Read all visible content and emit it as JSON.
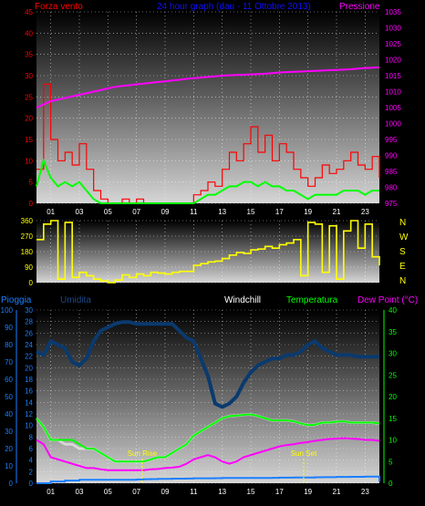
{
  "header": {
    "left_label": "Forza vento",
    "center_label": "24 hour graph (dau - 11 Ottobre 2013)",
    "right_label": "Pressione"
  },
  "bottom_header": {
    "pioggia": "Pioggia",
    "umidita": "Umidita",
    "windchill": "Windchill",
    "temperatura": "Temperatura",
    "dewpoint": "Dew Point (°C)"
  },
  "colors": {
    "wind": "#ff0000",
    "gust_avg": "#00ff00",
    "pressure": "#ff00ff",
    "direction": "#ffff00",
    "humidity": "#0a3a6e",
    "rain": "#1a7fff",
    "temperature": "#00ff00",
    "dewpoint": "#ff00ff",
    "windchill": "#ffffff"
  },
  "x_ticks": [
    "01",
    "03",
    "05",
    "07",
    "09",
    "11",
    "13",
    "15",
    "17",
    "19",
    "21",
    "23"
  ],
  "chart_data": [
    {
      "type": "line",
      "name": "wind-pressure",
      "left_axis": {
        "ticks": [
          0,
          5,
          10,
          15,
          20,
          25,
          30,
          35,
          40,
          45
        ],
        "range": [
          0,
          45
        ]
      },
      "right_axis": {
        "ticks": [
          975,
          980,
          985,
          990,
          995,
          1000,
          1005,
          1010,
          1015,
          1020,
          1025,
          1030,
          1035
        ],
        "range": [
          975,
          1035
        ]
      },
      "x": [
        0,
        0.5,
        1,
        1.5,
        2,
        2.5,
        3,
        3.5,
        4,
        4.5,
        5,
        5.5,
        6,
        6.5,
        7,
        7.5,
        8,
        8.5,
        9,
        9.5,
        10,
        10.5,
        11,
        11.5,
        12,
        12.5,
        13,
        13.5,
        14,
        14.5,
        15,
        15.5,
        16,
        16.5,
        17,
        17.5,
        18,
        18.5,
        19,
        19.5,
        20,
        20.5,
        21,
        21.5,
        22,
        22.5,
        23,
        23.5,
        24
      ],
      "series": [
        {
          "values": [
            8,
            28,
            15,
            10,
            12,
            9,
            14,
            8,
            3,
            1,
            0,
            0,
            1,
            0,
            1,
            0,
            0,
            0,
            0,
            0,
            0,
            0,
            2,
            3,
            5,
            4,
            8,
            12,
            10,
            14,
            18,
            12,
            16,
            10,
            14,
            12,
            8,
            6,
            4,
            6,
            9,
            7,
            8,
            10,
            12,
            9,
            8,
            11,
            6
          ]
        },
        {
          "values": [
            4,
            10,
            6,
            4,
            5,
            4,
            5,
            3,
            1,
            0,
            0,
            0,
            0,
            0,
            0,
            0,
            0,
            0,
            0,
            0,
            0,
            0,
            0,
            1,
            2,
            2,
            3,
            4,
            4,
            5,
            5,
            4,
            5,
            4,
            4,
            3,
            3,
            2,
            1,
            2,
            2,
            2,
            2,
            3,
            3,
            3,
            2,
            3,
            3
          ]
        },
        {
          "values": [
            1005,
            1006,
            1007,
            1007.5,
            1008,
            1008.5,
            1009,
            1009.5,
            1010,
            1010.5,
            1011,
            1011.5,
            1011.8,
            1012,
            1012.3,
            1012.5,
            1012.8,
            1013,
            1013.2,
            1013.5,
            1013.7,
            1014,
            1014.2,
            1014.4,
            1014.6,
            1014.8,
            1015,
            1015.1,
            1015.2,
            1015.3,
            1015.4,
            1015.5,
            1015.6,
            1015.8,
            1016,
            1016.1,
            1016.2,
            1016.3,
            1016.4,
            1016.5,
            1016.6,
            1016.7,
            1016.8,
            1016.9,
            1017,
            1017.2,
            1017.4,
            1017.5,
            1017.6
          ]
        }
      ]
    },
    {
      "type": "line",
      "name": "wind-direction",
      "left_axis": {
        "ticks": [
          0,
          90,
          180,
          270,
          360
        ],
        "range": [
          0,
          360
        ]
      },
      "right_axis": {
        "ticks": [
          "N",
          "W",
          "S",
          "E",
          "N"
        ]
      },
      "x": [
        0,
        0.5,
        1,
        1.5,
        2,
        2.5,
        3,
        3.5,
        4,
        4.5,
        5,
        5.5,
        6,
        6.5,
        7,
        7.5,
        8,
        8.5,
        9,
        9.5,
        10,
        10.5,
        11,
        11.5,
        12,
        12.5,
        13,
        13.5,
        14,
        14.5,
        15,
        15.5,
        16,
        16.5,
        17,
        17.5,
        18,
        18.5,
        19,
        19.5,
        20,
        20.5,
        21,
        21.5,
        22,
        22.5,
        23,
        23.5,
        24
      ],
      "series": [
        {
          "values": [
            250,
            340,
            360,
            20,
            350,
            30,
            60,
            40,
            20,
            10,
            0,
            15,
            45,
            30,
            50,
            40,
            60,
            55,
            50,
            60,
            65,
            65,
            100,
            110,
            120,
            125,
            140,
            160,
            175,
            170,
            190,
            195,
            210,
            200,
            220,
            230,
            250,
            40,
            350,
            340,
            60,
            330,
            20,
            300,
            360,
            200,
            340,
            150,
            100
          ]
        }
      ]
    },
    {
      "type": "line",
      "name": "temperature-humidity",
      "left_axis": {
        "ticks": [
          0,
          10,
          20,
          30,
          40,
          50,
          60,
          70,
          80,
          90,
          100
        ],
        "range": [
          0,
          100
        ]
      },
      "second_left_axis": {
        "ticks": [
          0,
          2,
          4,
          6,
          8,
          10,
          12,
          14,
          16,
          18,
          20,
          22,
          24,
          26,
          28,
          30
        ],
        "range": [
          0,
          30
        ]
      },
      "right_axis": {
        "ticks": [
          0,
          5,
          10,
          15,
          20,
          25,
          30,
          35,
          40
        ],
        "range": [
          0,
          40
        ]
      },
      "annotations": [
        {
          "label": "Sun Rise",
          "x": 7.4
        },
        {
          "label": "Sun Set",
          "x": 18.7
        }
      ],
      "x": [
        0,
        0.5,
        1,
        1.5,
        2,
        2.5,
        3,
        3.5,
        4,
        4.5,
        5,
        5.5,
        6,
        6.5,
        7,
        7.5,
        8,
        8.5,
        9,
        9.5,
        10,
        10.5,
        11,
        11.5,
        12,
        12.5,
        13,
        13.5,
        14,
        14.5,
        15,
        15.5,
        16,
        16.5,
        17,
        17.5,
        18,
        18.5,
        19,
        19.5,
        20,
        20.5,
        21,
        21.5,
        22,
        22.5,
        23,
        23.5,
        24
      ],
      "series": [
        {
          "name": "Umidita",
          "values": [
            76,
            74,
            82,
            80,
            78,
            70,
            68,
            72,
            82,
            88,
            90,
            92,
            93,
            93,
            92,
            92,
            92,
            92,
            92,
            92,
            88,
            84,
            82,
            72,
            62,
            46,
            44,
            46,
            50,
            58,
            64,
            68,
            70,
            72,
            72,
            74,
            74,
            76,
            80,
            82,
            78,
            76,
            74,
            74,
            74,
            73,
            73,
            73,
            73
          ]
        },
        {
          "name": "Temperatura",
          "values": [
            15,
            13,
            10,
            10,
            10,
            10,
            9,
            8,
            8,
            7,
            6,
            5,
            5,
            5,
            5,
            5,
            5.5,
            6,
            6,
            7,
            8,
            9,
            11,
            12,
            13,
            14,
            15,
            15.5,
            15.6,
            15.8,
            15.9,
            15.5,
            15,
            14.5,
            14.5,
            14.5,
            14.3,
            13.8,
            13.4,
            13.5,
            14,
            14,
            14.2,
            14.3,
            14,
            14,
            14,
            14,
            13.8
          ]
        },
        {
          "name": "Dew Point (°C)",
          "values": [
            10,
            9,
            6,
            5.5,
            5,
            4.5,
            4,
            3.5,
            3.5,
            3.2,
            3,
            3,
            3,
            3,
            3,
            3,
            3.2,
            3.3,
            3.5,
            3.6,
            3.8,
            4.5,
            5.5,
            6,
            6.5,
            6,
            5,
            4.5,
            5,
            6,
            6.5,
            7,
            7.5,
            8,
            8.5,
            8.8,
            9,
            9.3,
            9.5,
            9.8,
            10,
            10.2,
            10.3,
            10.4,
            10.3,
            10.2,
            10,
            10,
            9.8
          ]
        },
        {
          "name": "Windchill",
          "values": [
            15,
            13,
            10,
            10,
            9,
            9,
            8,
            8,
            8,
            7,
            6,
            5,
            5,
            5,
            5,
            5,
            5.5,
            6,
            6,
            7,
            8,
            9,
            11,
            12,
            13,
            14,
            15,
            15.5,
            15.6,
            15.8,
            15.9,
            15.5,
            15,
            14.5,
            14.5,
            14.5,
            14.3,
            13.8,
            13.4,
            13.5,
            14,
            14,
            14.2,
            14.3,
            14,
            14,
            14,
            14,
            13.8
          ]
        },
        {
          "name": "Pioggia",
          "values": [
            0,
            0,
            1,
            1,
            1.5,
            1.5,
            2,
            2,
            2,
            2,
            2,
            2,
            2,
            2,
            2.2,
            2.3,
            2.4,
            2.5,
            2.5,
            2.6,
            2.6,
            2.7,
            2.8,
            2.8,
            2.8,
            2.9,
            3,
            3,
            3,
            3,
            3,
            3,
            3,
            3.1,
            3.2,
            3.2,
            3.3,
            3.3,
            3.3,
            3.4,
            3.5,
            3.5,
            3.6,
            3.6,
            3.7,
            3.7,
            3.8,
            3.8,
            1
          ]
        }
      ]
    }
  ]
}
